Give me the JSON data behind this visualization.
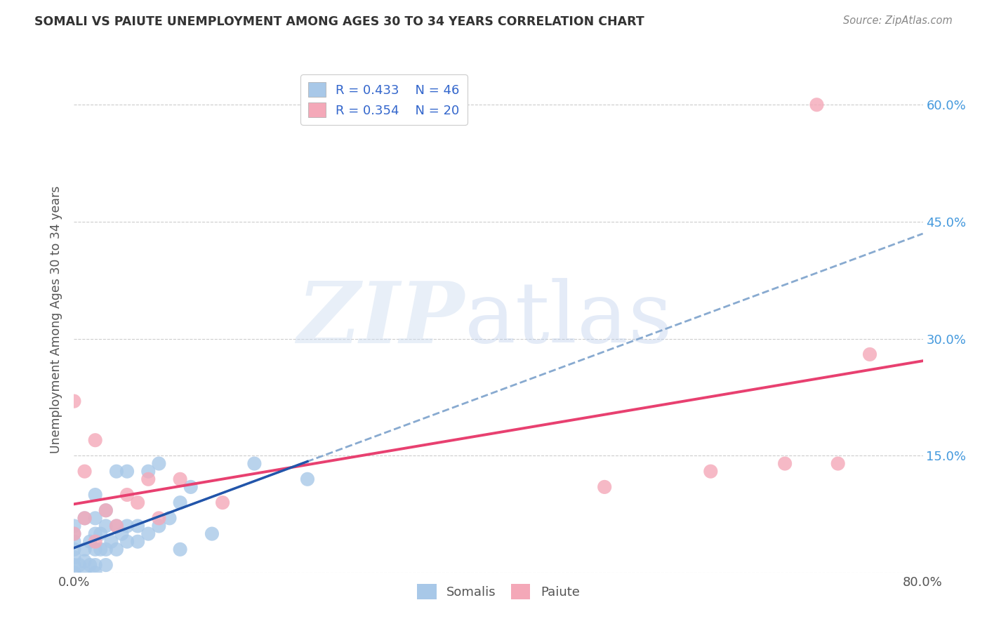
{
  "title": "SOMALI VS PAIUTE UNEMPLOYMENT AMONG AGES 30 TO 34 YEARS CORRELATION CHART",
  "source": "Source: ZipAtlas.com",
  "ylabel": "Unemployment Among Ages 30 to 34 years",
  "xlim": [
    0.0,
    0.8
  ],
  "ylim": [
    0.0,
    0.65
  ],
  "somali_color": "#a8c8e8",
  "paiute_color": "#f4a8b8",
  "somali_line_color": "#2255aa",
  "paiute_line_color": "#e84070",
  "somali_x": [
    0.0,
    0.0,
    0.0,
    0.0,
    0.0,
    0.0,
    0.0,
    0.005,
    0.01,
    0.01,
    0.01,
    0.01,
    0.015,
    0.015,
    0.02,
    0.02,
    0.02,
    0.02,
    0.02,
    0.02,
    0.025,
    0.025,
    0.03,
    0.03,
    0.03,
    0.03,
    0.035,
    0.04,
    0.04,
    0.04,
    0.045,
    0.05,
    0.05,
    0.05,
    0.06,
    0.06,
    0.07,
    0.07,
    0.08,
    0.08,
    0.09,
    0.1,
    0.1,
    0.11,
    0.13,
    0.17,
    0.22
  ],
  "somali_y": [
    0.0,
    0.01,
    0.02,
    0.03,
    0.04,
    0.05,
    0.06,
    0.01,
    0.0,
    0.015,
    0.03,
    0.07,
    0.01,
    0.04,
    0.0,
    0.01,
    0.03,
    0.05,
    0.07,
    0.1,
    0.03,
    0.05,
    0.01,
    0.03,
    0.06,
    0.08,
    0.04,
    0.03,
    0.06,
    0.13,
    0.05,
    0.04,
    0.06,
    0.13,
    0.04,
    0.06,
    0.05,
    0.13,
    0.06,
    0.14,
    0.07,
    0.03,
    0.09,
    0.11,
    0.05,
    0.14,
    0.12
  ],
  "paiute_x": [
    0.0,
    0.0,
    0.01,
    0.01,
    0.02,
    0.02,
    0.03,
    0.04,
    0.05,
    0.06,
    0.07,
    0.08,
    0.1,
    0.14,
    0.5,
    0.6,
    0.67,
    0.7,
    0.72,
    0.75
  ],
  "paiute_y": [
    0.05,
    0.22,
    0.07,
    0.13,
    0.04,
    0.17,
    0.08,
    0.06,
    0.1,
    0.09,
    0.12,
    0.07,
    0.12,
    0.09,
    0.11,
    0.13,
    0.14,
    0.6,
    0.14,
    0.28
  ],
  "somali_line_x0": 0.0,
  "somali_line_x1": 0.22,
  "somali_line_dashed_x0": 0.0,
  "somali_line_dashed_x1": 0.8,
  "paiute_line_x0": 0.0,
  "paiute_line_x1": 0.8
}
